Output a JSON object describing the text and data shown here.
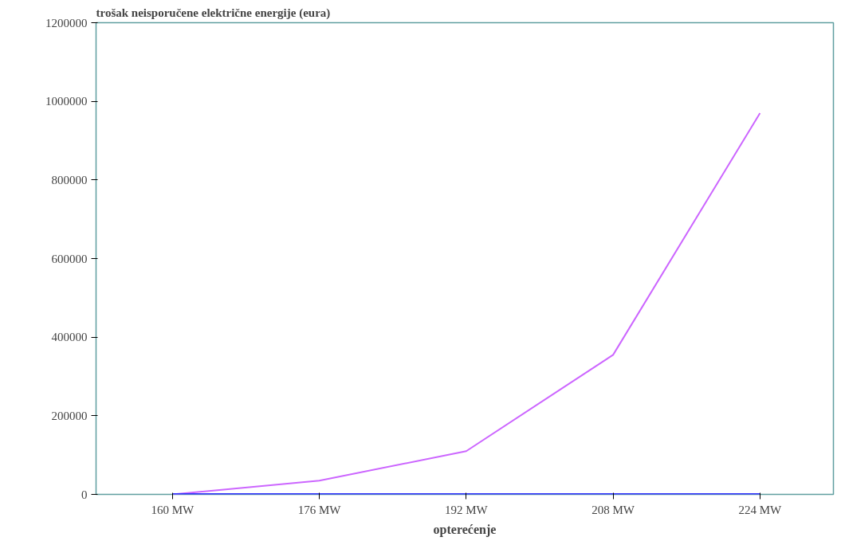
{
  "chart_data": {
    "type": "line",
    "ylabel": "trošak neisporučene električne energije (eura)",
    "xlabel": "opterećenje",
    "categories": [
      "160 MW",
      "176 MW",
      "192 MW",
      "208 MW",
      "224 MW"
    ],
    "series": [
      {
        "color": "#cc66ff",
        "values": [
          0,
          35000,
          110000,
          355000,
          970000
        ]
      },
      {
        "color": "#3333ff",
        "values": [
          0,
          0,
          0,
          0,
          0
        ]
      }
    ],
    "ylim": [
      0,
      1200000
    ],
    "yticks": [
      0,
      200000,
      400000,
      600000,
      800000,
      1000000,
      1200000
    ],
    "grid": false,
    "marker": "none",
    "line_style": "solid"
  }
}
